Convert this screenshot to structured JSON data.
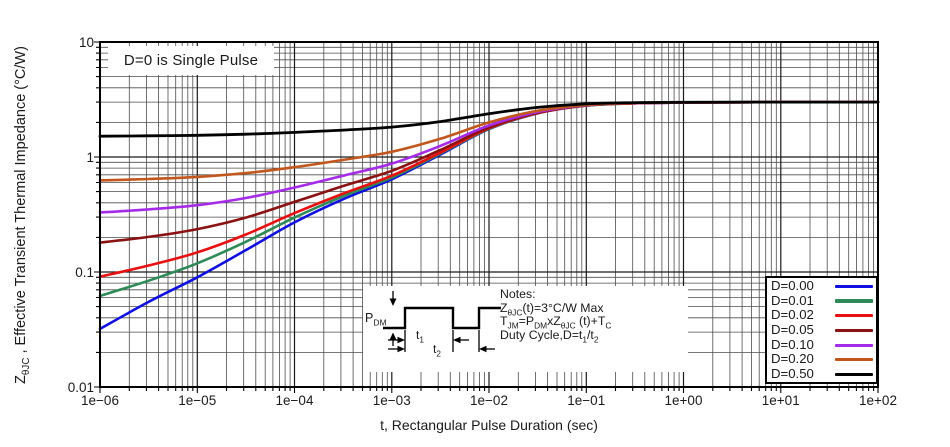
{
  "figure": {
    "annotation": "D=0 is Single Pulse",
    "x_axis": {
      "label": "t, Rectangular Pulse Duration (sec)",
      "ticks": [
        {
          "label": "1e−06",
          "value": 1e-06
        },
        {
          "label": "1e−05",
          "value": 1e-05
        },
        {
          "label": "1e−04",
          "value": 0.0001
        },
        {
          "label": "1e−03",
          "value": 0.001
        },
        {
          "label": "1e−02",
          "value": 0.01
        },
        {
          "label": "1e−01",
          "value": 0.1
        },
        {
          "label": "1e+00",
          "value": 1
        },
        {
          "label": "1e+01",
          "value": 10
        },
        {
          "label": "1e+02",
          "value": 100
        }
      ]
    },
    "y_axis": {
      "label_segments": [
        {
          "t": "Z"
        },
        {
          "s": "θJC"
        },
        {
          "t": " , Effective Transient Thermal Impedance (°C/W)"
        }
      ],
      "ticks": [
        {
          "label": "10",
          "value": 10
        },
        {
          "label": "1",
          "value": 1
        },
        {
          "label": "0.1",
          "value": 0.1
        },
        {
          "label": "0.01",
          "value": 0.01
        }
      ]
    }
  },
  "notes": {
    "lines": [
      [
        {
          "t": "Notes:"
        }
      ],
      [
        {
          "t": "Z"
        },
        {
          "s": "θJC"
        },
        {
          "t": "(t)=3°C/W Max"
        }
      ],
      [
        {
          "t": "T"
        },
        {
          "s": "JM"
        },
        {
          "t": "=P"
        },
        {
          "s": "DM"
        },
        {
          "t": "xZ"
        },
        {
          "s": "θJC"
        },
        {
          "t": " (t)+T"
        },
        {
          "s": "C"
        }
      ],
      [
        {
          "t": "Duty Cycle,D=t"
        },
        {
          "s": "1"
        },
        {
          "t": "/t"
        },
        {
          "s": "2"
        }
      ]
    ]
  },
  "waveform_labels": {
    "pdm": [
      {
        "t": "P"
      },
      {
        "s": "DM"
      }
    ],
    "t1": [
      {
        "t": "t"
      },
      {
        "s": "1"
      }
    ],
    "t2": [
      {
        "t": "t"
      },
      {
        "s": "2"
      }
    ]
  },
  "chart_data": {
    "type": "line",
    "title": "",
    "xlabel": "t, Rectangular Pulse Duration (sec)",
    "ylabel": "ZθJC , Effective Transient Thermal Impedance (°C/W)",
    "x_scale": "log",
    "y_scale": "log",
    "xlim": [
      1e-06,
      100
    ],
    "ylim": [
      0.01,
      10
    ],
    "grid": "both",
    "legend_position": "lower right",
    "annotations": [
      "D=0 is Single Pulse",
      "ZθJC(t)=3°C/W Max",
      "TJM=PDMxZθJC (t)+TC",
      "Duty Cycle,D=t1/t2"
    ],
    "max_thermal_impedance_c_per_w": 3,
    "x": [
      1e-06,
      3.16e-06,
      1e-05,
      3.16e-05,
      0.0001,
      0.000316,
      0.001,
      0.00316,
      0.01,
      0.0316,
      0.1,
      0.316,
      1,
      3.16,
      10,
      31.6,
      100
    ],
    "series": [
      {
        "name": "D=0.00",
        "color": "#1010E0",
        "values": [
          0.032,
          0.055,
          0.09,
          0.155,
          0.27,
          0.43,
          0.64,
          1.05,
          1.75,
          2.4,
          2.8,
          2.93,
          2.97,
          2.99,
          3.0,
          3.0,
          3.0
        ]
      },
      {
        "name": "D=0.01",
        "color": "#2E8B57",
        "values": [
          0.062,
          0.084,
          0.119,
          0.183,
          0.297,
          0.456,
          0.664,
          1.07,
          1.76,
          2.41,
          2.8,
          2.93,
          2.97,
          2.99,
          3.0,
          3.0,
          3.0
        ]
      },
      {
        "name": "D=0.02",
        "color": "#E81111",
        "values": [
          0.091,
          0.114,
          0.148,
          0.212,
          0.325,
          0.481,
          0.687,
          1.09,
          1.78,
          2.41,
          2.81,
          2.93,
          2.97,
          2.99,
          3.0,
          3.0,
          3.0
        ]
      },
      {
        "name": "D=0.05",
        "color": "#8B1212",
        "values": [
          0.18,
          0.202,
          0.236,
          0.297,
          0.407,
          0.559,
          0.758,
          1.15,
          1.81,
          2.43,
          2.81,
          2.94,
          2.97,
          2.99,
          3.0,
          3.0,
          3.0
        ]
      },
      {
        "name": "D=0.10",
        "color": "#A62BE8",
        "values": [
          0.329,
          0.35,
          0.381,
          0.44,
          0.543,
          0.687,
          0.876,
          1.25,
          1.88,
          2.46,
          2.82,
          2.94,
          2.97,
          2.99,
          3.0,
          3.0,
          3.0
        ]
      },
      {
        "name": "D=0.20",
        "color": "#C2571E",
        "values": [
          0.626,
          0.644,
          0.672,
          0.724,
          0.816,
          0.944,
          1.11,
          1.44,
          2.0,
          2.52,
          2.84,
          2.95,
          2.98,
          2.99,
          3.0,
          3.0,
          3.0
        ]
      },
      {
        "name": "D=0.50",
        "color": "#000000",
        "values": [
          1.516,
          1.528,
          1.545,
          1.578,
          1.635,
          1.715,
          1.82,
          2.03,
          2.38,
          2.7,
          2.9,
          2.97,
          2.99,
          3.0,
          3.0,
          3.0,
          3.0
        ]
      }
    ]
  }
}
